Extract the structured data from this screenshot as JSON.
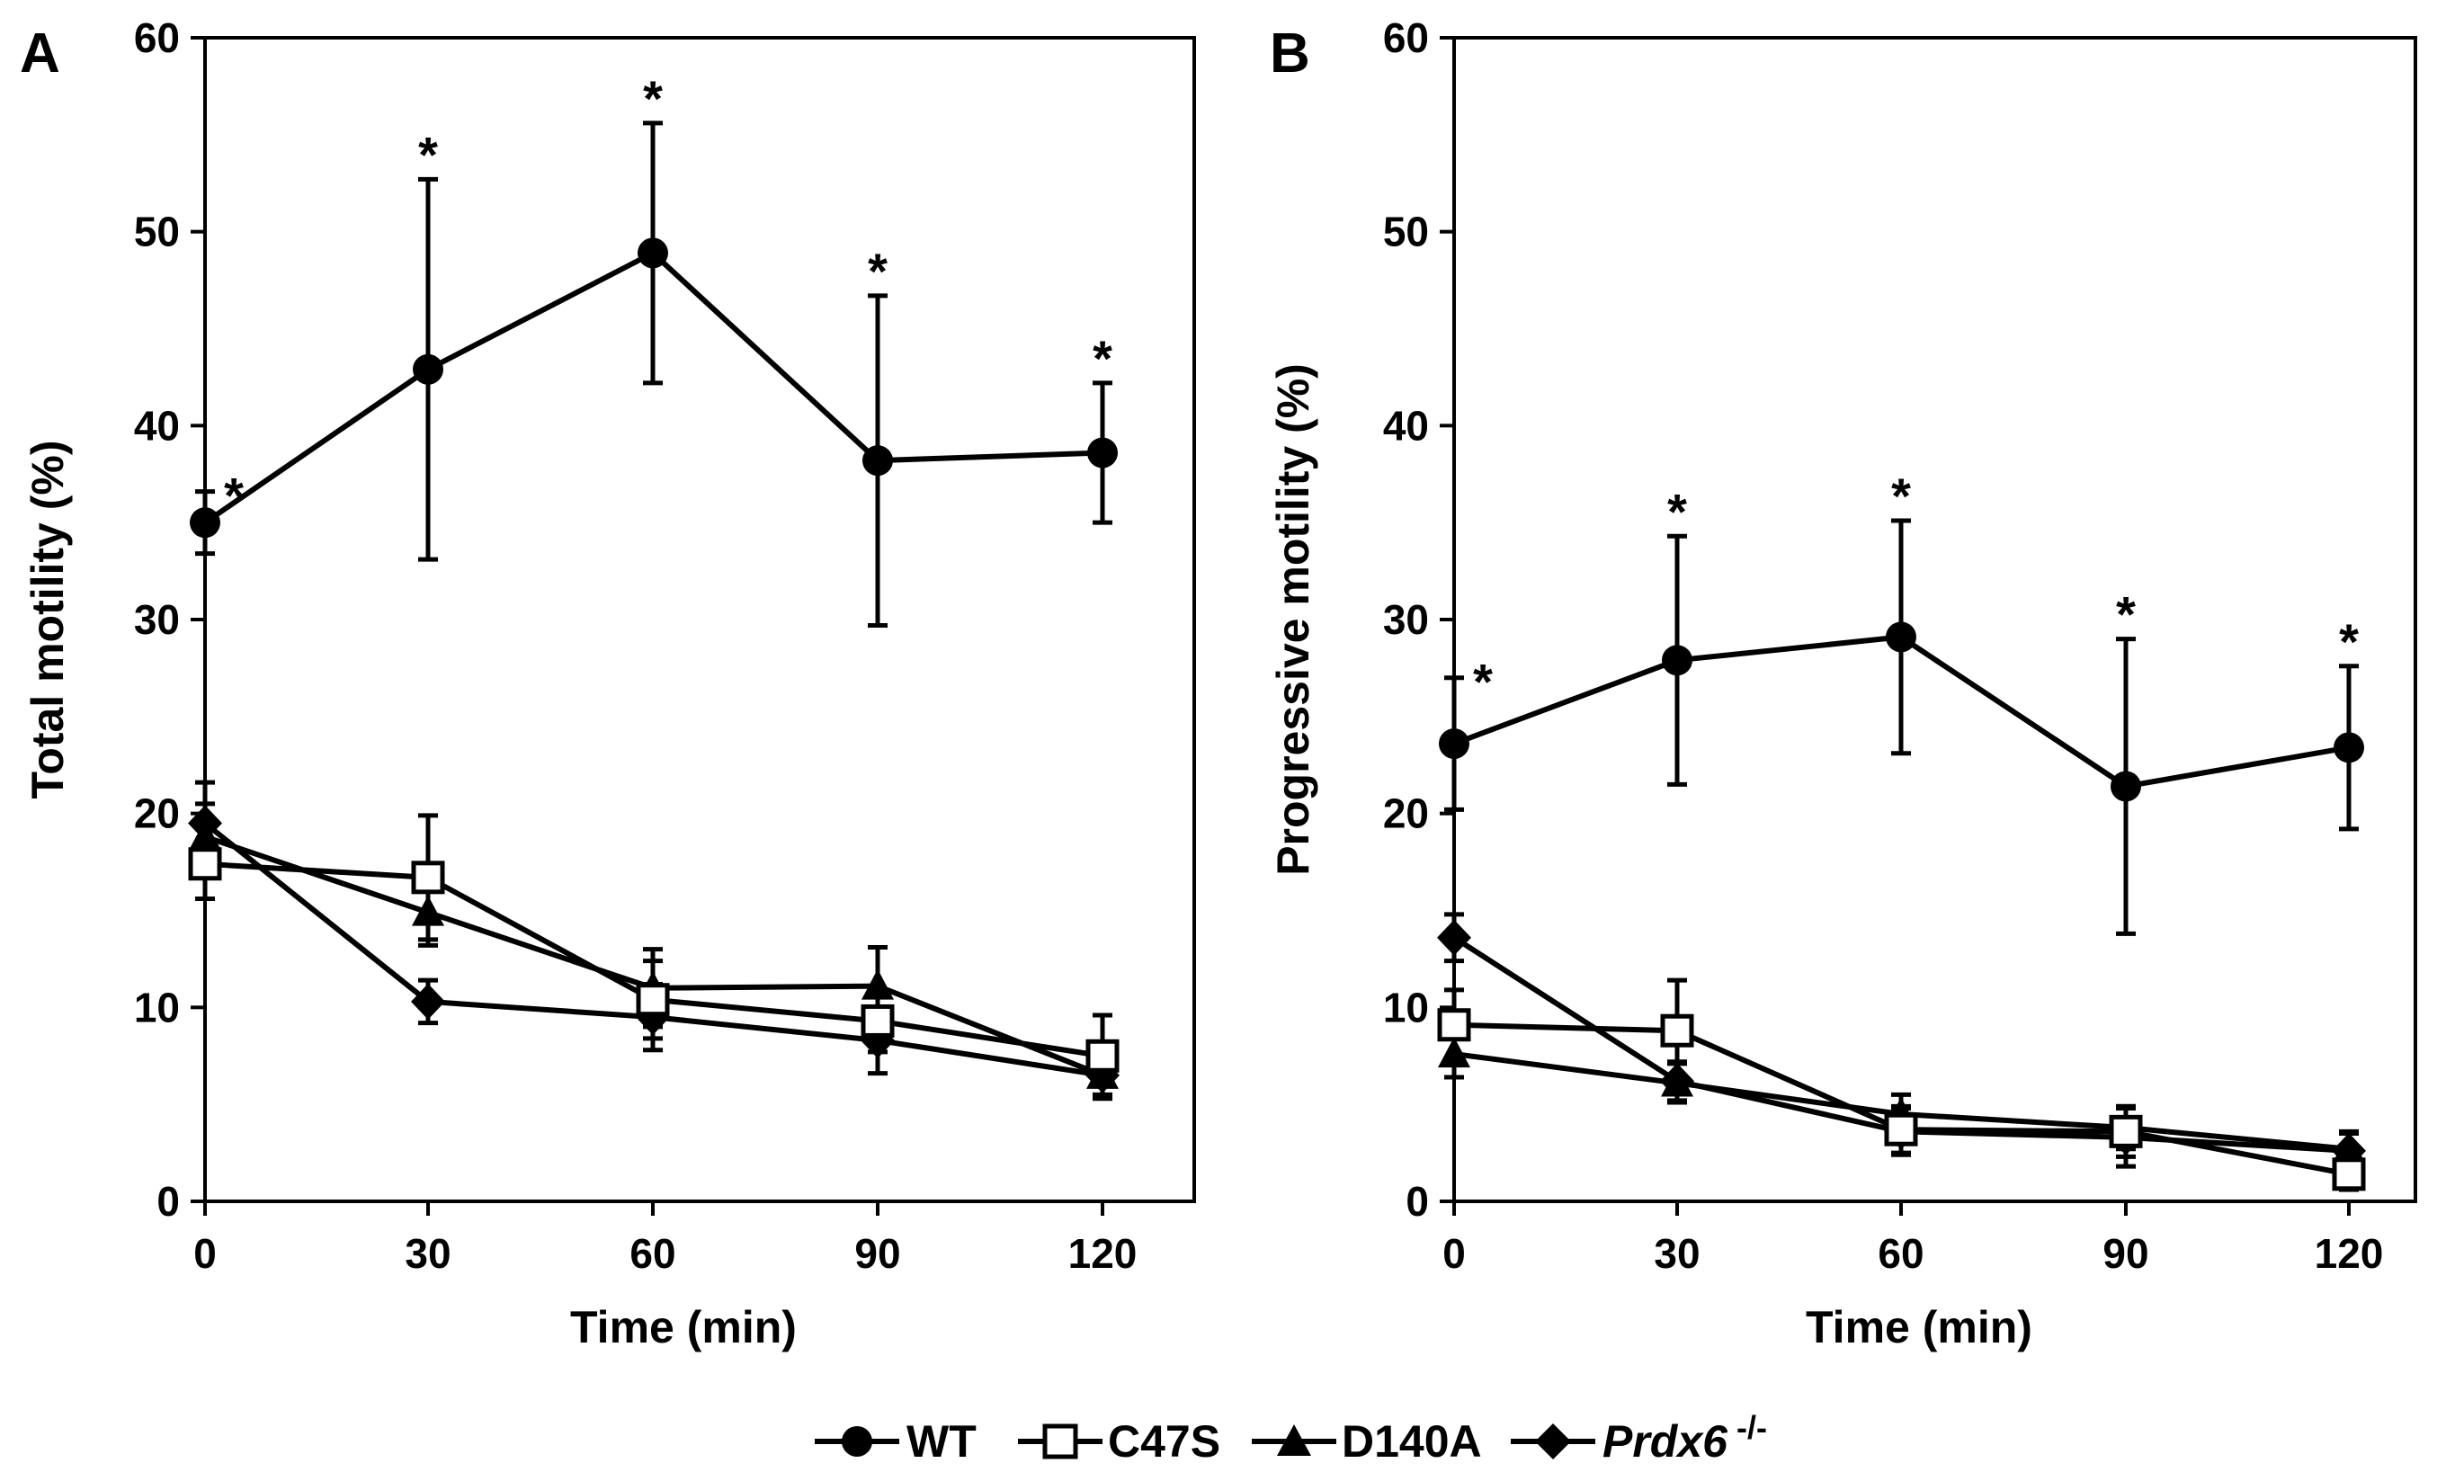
{
  "legend": [
    {
      "name": "WT",
      "marker": "circle",
      "fill": "#000000"
    },
    {
      "name": "C47S",
      "marker": "square",
      "fill": "#ffffff"
    },
    {
      "name": "D140A",
      "marker": "triangle",
      "fill": "#000000"
    },
    {
      "name": "Prdx6",
      "superscript": "-/-",
      "marker": "diamond",
      "fill": "#000000",
      "italic": true
    }
  ],
  "colors": {
    "line": "#000000",
    "background": "#ffffff"
  },
  "chart_data": [
    {
      "panel": "A",
      "type": "line",
      "xlabel": "Time (min)",
      "ylabel": "Total motility (%)",
      "x": [
        0,
        30,
        60,
        90,
        120
      ],
      "xticks": [
        "0",
        "30",
        "60",
        "90",
        "120"
      ],
      "xlim": [
        0,
        130
      ],
      "ylim": [
        0,
        60
      ],
      "yticks": [
        "0",
        "10",
        "20",
        "30",
        "40",
        "50",
        "60"
      ],
      "series": [
        {
          "name": "WT",
          "marker": "circle",
          "values": [
            35.0,
            42.9,
            48.9,
            38.2,
            38.6
          ],
          "errors": [
            1.6,
            9.8,
            6.7,
            8.5,
            3.6
          ]
        },
        {
          "name": "C47S",
          "marker": "square",
          "values": [
            17.4,
            16.7,
            10.4,
            9.3,
            7.5
          ],
          "errors": [
            1.8,
            3.2,
            2.0,
            1.6,
            2.1
          ]
        },
        {
          "name": "D140A",
          "marker": "triangle",
          "values": [
            18.8,
            14.9,
            11.0,
            11.1,
            6.5
          ],
          "errors": [
            1.7,
            1.7,
            2.0,
            2.0,
            1.0
          ]
        },
        {
          "name": "Prdx6-/-",
          "marker": "diamond",
          "values": [
            19.5,
            10.3,
            9.5,
            8.3,
            6.5
          ],
          "errors": [
            2.1,
            1.1,
            1.7,
            1.7,
            1.2
          ]
        }
      ],
      "annotations": [
        "*",
        "*",
        "*",
        "*",
        "*"
      ]
    },
    {
      "panel": "B",
      "type": "line",
      "xlabel": "Time (min)",
      "ylabel": "Progressive motility (%)",
      "x": [
        0,
        30,
        60,
        90,
        120
      ],
      "xticks": [
        "0",
        "30",
        "60",
        "90",
        "120"
      ],
      "xlim": [
        0,
        130
      ],
      "ylim": [
        0,
        60
      ],
      "yticks": [
        "0",
        "10",
        "20",
        "30",
        "40",
        "50",
        "60"
      ],
      "series": [
        {
          "name": "WT",
          "marker": "circle",
          "values": [
            23.6,
            27.9,
            29.1,
            21.4,
            23.4
          ],
          "errors": [
            3.4,
            6.4,
            6.0,
            7.6,
            4.2
          ]
        },
        {
          "name": "C47S",
          "marker": "square",
          "values": [
            9.1,
            8.8,
            3.7,
            3.6,
            1.4
          ],
          "errors": [
            1.8,
            2.6,
            1.2,
            1.3,
            0.8
          ]
        },
        {
          "name": "D140A",
          "marker": "triangle",
          "values": [
            7.6,
            6.1,
            4.5,
            3.8,
            2.7
          ],
          "errors": [
            1.2,
            1.0,
            1.0,
            1.1,
            0.8
          ]
        },
        {
          "name": "Prdx6-/-",
          "marker": "diamond",
          "values": [
            13.6,
            6.2,
            3.6,
            3.3,
            2.6
          ],
          "errors": [
            1.2,
            1.0,
            1.2,
            1.5,
            1.0
          ]
        }
      ],
      "annotations": [
        "*",
        "*",
        "*",
        "*",
        "*"
      ]
    }
  ]
}
